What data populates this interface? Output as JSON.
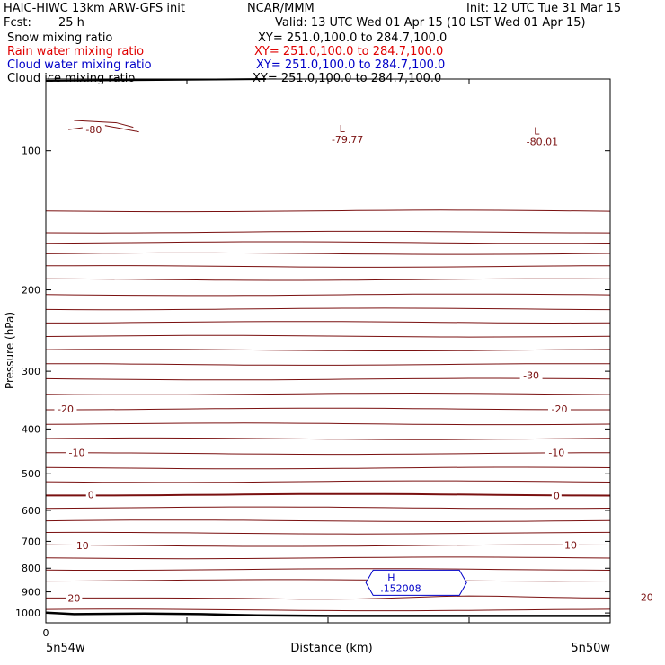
{
  "header": {
    "title": "HAIC-HIWC 13km ARW-GFS init",
    "org": "NCAR/MMM",
    "init": "Init: 12 UTC Tue 31 Mar 15",
    "fcst_label": "Fcst:",
    "fcst_value": "25 h",
    "valid": "Valid: 13 UTC Wed 01 Apr 15 (10 LST Wed 01 Apr 15)"
  },
  "fields": [
    {
      "label": "Snow mixing ratio",
      "xy": "XY= 251.0,100.0 to 284.7,100.0",
      "color": "#000000"
    },
    {
      "label": "Rain water mixing ratio",
      "xy": "XY= 251.0,100.0 to 284.7,100.0",
      "color": "#e00000"
    },
    {
      "label": "Cloud water mixing ratio",
      "xy": "XY= 251.0,100.0 to 284.7,100.0",
      "color": "#0000c8"
    },
    {
      "label": "Cloud ice mixing ratio",
      "xy": "XY= 251.0,100.0 to 284.7,100.0",
      "color": "#000000"
    }
  ],
  "chart_data": {
    "type": "line",
    "ylabel": "Pressure (hPa)",
    "xlabel": "Distance (km)",
    "y_scale": "log",
    "ylim": [
      1050,
      70
    ],
    "yticks": [
      100,
      200,
      300,
      400,
      500,
      600,
      700,
      800,
      900,
      1000
    ],
    "xlim": [
      0,
      200
    ],
    "x_origin_label": "0",
    "x_left_label": "5n54w",
    "x_right_label": "5n50w",
    "contour_color": "#7a1010",
    "terrain_color": "#000000",
    "isotherm_labels": [
      {
        "text": "-80",
        "x": 17,
        "p": 90
      },
      {
        "text": "-30",
        "x": 172,
        "p": 306
      },
      {
        "text": "-20",
        "x": 7,
        "p": 362
      },
      {
        "text": "-20",
        "x": 182,
        "p": 362
      },
      {
        "text": "-10",
        "x": 11,
        "p": 450
      },
      {
        "text": "-10",
        "x": 181,
        "p": 450
      },
      {
        "text": "0",
        "x": 16,
        "p": 555
      },
      {
        "text": "0",
        "x": 181,
        "p": 557
      },
      {
        "text": "10",
        "x": 13,
        "p": 715
      },
      {
        "text": "10",
        "x": 186,
        "p": 713
      },
      {
        "text": "20",
        "x": 10,
        "p": 928
      },
      {
        "text": "20",
        "x": 213,
        "p": 924
      }
    ],
    "lows": [
      {
        "marker": "L",
        "value": "-79.77",
        "x": 105,
        "p": 92
      },
      {
        "marker": "L",
        "value": "-80.01",
        "x": 174,
        "p": 93
      }
    ],
    "highs": [
      {
        "marker": "H",
        "value": ".152008",
        "x": 130,
        "p": 860
      }
    ]
  }
}
